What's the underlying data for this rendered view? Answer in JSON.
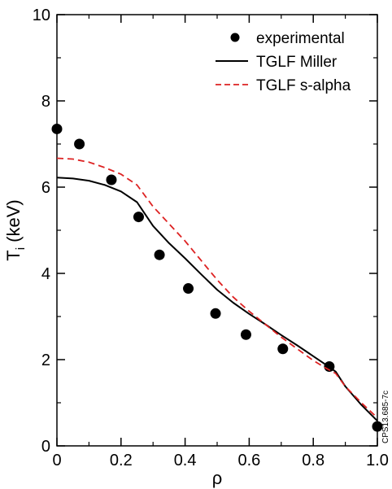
{
  "chart_data": {
    "type": "scatter",
    "title": "",
    "xlabel": "ρ",
    "ylabel_main": "T",
    "ylabel_sub": "i",
    "ylabel_unit": " (keV)",
    "xlim": [
      0,
      1.0
    ],
    "ylim": [
      0,
      10
    ],
    "x_ticks": [
      0,
      0.2,
      0.4,
      0.6,
      0.8,
      1.0
    ],
    "x_tick_labels": [
      "0",
      "0.2",
      "0.4",
      "0.6",
      "0.8",
      "1.0"
    ],
    "y_ticks": [
      0,
      2,
      4,
      6,
      8,
      10
    ],
    "y_tick_labels": [
      "0",
      "2",
      "4",
      "6",
      "8",
      "10"
    ],
    "grid": false,
    "legend_position": "top-right",
    "series": [
      {
        "name": "experimental",
        "style": "markers",
        "color": "#000000",
        "x": [
          0.0,
          0.07,
          0.17,
          0.255,
          0.32,
          0.41,
          0.495,
          0.59,
          0.705,
          0.85,
          1.0
        ],
        "y": [
          7.35,
          7.0,
          6.17,
          5.31,
          4.43,
          3.65,
          3.07,
          2.58,
          2.25,
          1.84,
          0.45
        ]
      },
      {
        "name": "TGLF Miller",
        "style": "solid",
        "color": "#000000",
        "x": [
          0.0,
          0.05,
          0.1,
          0.15,
          0.2,
          0.25,
          0.3,
          0.35,
          0.4,
          0.45,
          0.5,
          0.55,
          0.6,
          0.65,
          0.7,
          0.75,
          0.8,
          0.84,
          0.87,
          0.9,
          0.95,
          1.0
        ],
        "y": [
          6.22,
          6.2,
          6.15,
          6.05,
          5.9,
          5.65,
          5.1,
          4.7,
          4.35,
          3.98,
          3.62,
          3.32,
          3.06,
          2.82,
          2.57,
          2.33,
          2.08,
          1.88,
          1.72,
          1.38,
          0.95,
          0.58
        ]
      },
      {
        "name": "TGLF s-alpha",
        "style": "dashed",
        "color": "#dd2222",
        "x": [
          0.0,
          0.05,
          0.1,
          0.15,
          0.2,
          0.25,
          0.3,
          0.35,
          0.4,
          0.45,
          0.5,
          0.55,
          0.6,
          0.65,
          0.7,
          0.75,
          0.8,
          0.84,
          0.87,
          0.9,
          0.95,
          1.0
        ],
        "y": [
          6.67,
          6.65,
          6.58,
          6.45,
          6.3,
          6.05,
          5.55,
          5.15,
          4.75,
          4.3,
          3.85,
          3.45,
          3.12,
          2.82,
          2.52,
          2.25,
          1.98,
          1.8,
          1.68,
          1.38,
          1.0,
          0.65
        ]
      }
    ],
    "annotations": [
      "CPS13.685-7c"
    ]
  }
}
